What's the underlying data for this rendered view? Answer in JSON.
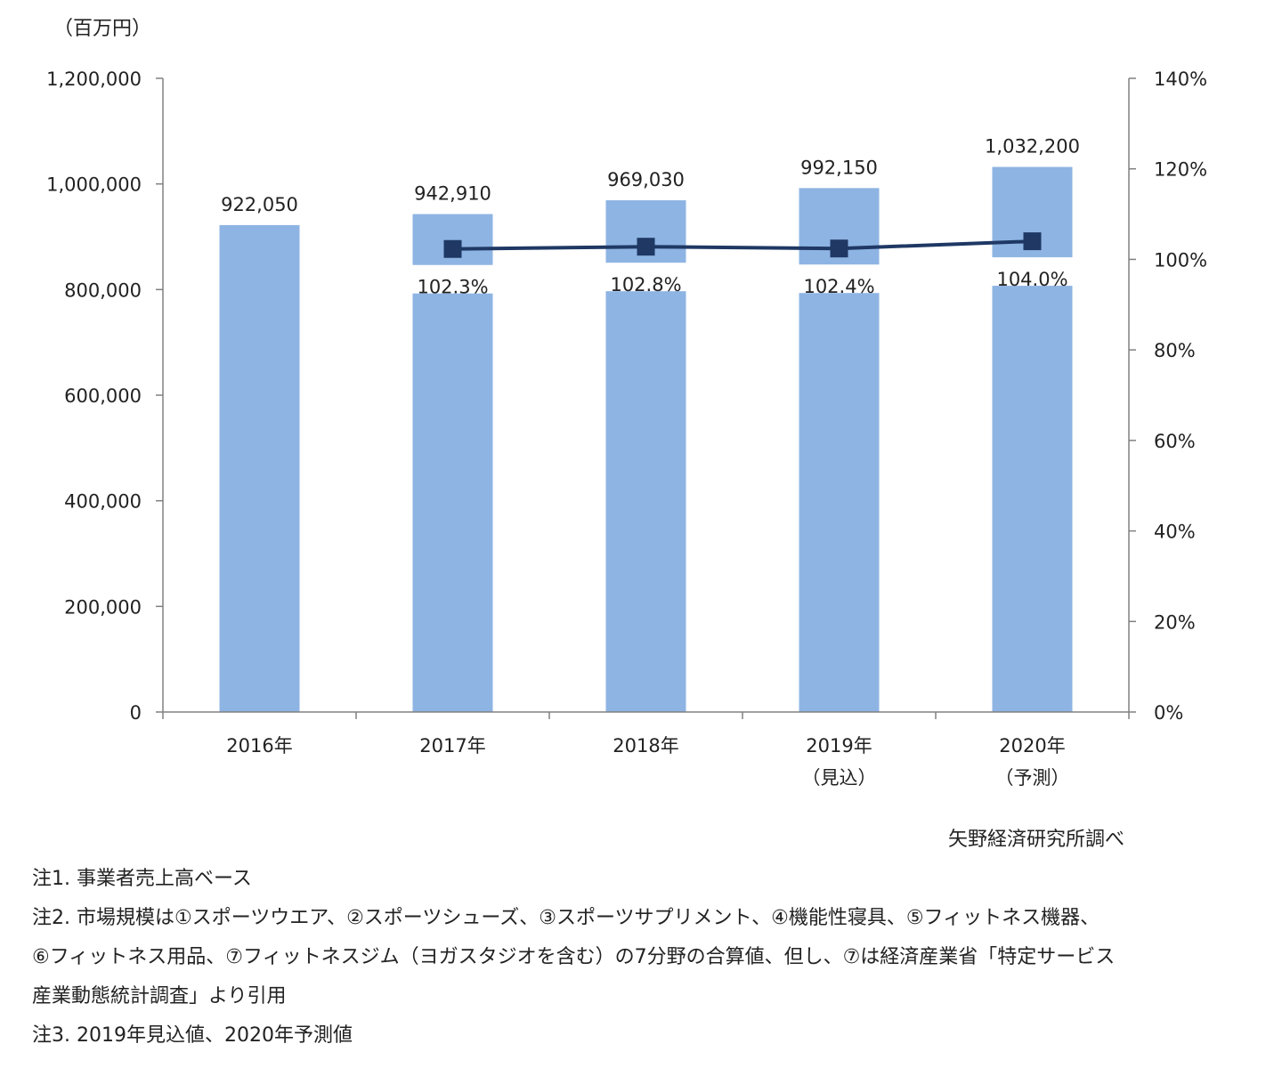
{
  "chart_data": {
    "type": "bar",
    "unit_label": "（百万円）",
    "categories": [
      "2016年",
      "2017年",
      "2018年",
      "2019年\n（見込）",
      "2020年\n（予測）"
    ],
    "category_lines": [
      [
        "2016年"
      ],
      [
        "2017年"
      ],
      [
        "2018年"
      ],
      [
        "2019年",
        "（見込）"
      ],
      [
        "2020年",
        "（予測）"
      ]
    ],
    "series": [
      {
        "type": "bar",
        "values": [
          922050,
          942910,
          969030,
          992150,
          1032200
        ],
        "value_labels": [
          "922,050",
          "942,910",
          "969,030",
          "992,150",
          "1,032,200"
        ],
        "color": "#8eb4e3"
      },
      {
        "type": "line",
        "axis": "right",
        "values": [
          null,
          102.3,
          102.8,
          102.4,
          104.0
        ],
        "value_labels": [
          "",
          "102.3%",
          "102.8%",
          "102.4%",
          "104.0%"
        ],
        "color": "#1f3864"
      }
    ],
    "y_left": {
      "ylim": [
        0,
        1200000
      ],
      "ticks": [
        0,
        200000,
        400000,
        600000,
        800000,
        1000000,
        1200000
      ],
      "tick_labels": [
        "0",
        "200,000",
        "400,000",
        "600,000",
        "800,000",
        "1,000,000",
        "1,200,000"
      ]
    },
    "y_right": {
      "ylim": [
        0,
        140
      ],
      "ticks": [
        0,
        20,
        40,
        60,
        80,
        100,
        120,
        140
      ],
      "tick_labels": [
        "0%",
        "20%",
        "40%",
        "60%",
        "80%",
        "100%",
        "120%",
        "140%"
      ]
    },
    "grid": false,
    "legend": "none"
  },
  "source": "矢野経済研究所調べ",
  "notes": [
    "注1. 事業者売上高ベース",
    "注2. 市場規模は①スポーツウエア、②スポーツシューズ、③スポーツサプリメント、④機能性寝具、⑤フィットネス機器、",
    "⑥フィットネス用品、⑦フィットネスジム（ヨガスタジオを含む）の7分野の合算値、但し、⑦は経済産業省「特定サービス",
    "産業動態統計調査」より引用",
    "注3. 2019年見込値、2020年予測値"
  ]
}
